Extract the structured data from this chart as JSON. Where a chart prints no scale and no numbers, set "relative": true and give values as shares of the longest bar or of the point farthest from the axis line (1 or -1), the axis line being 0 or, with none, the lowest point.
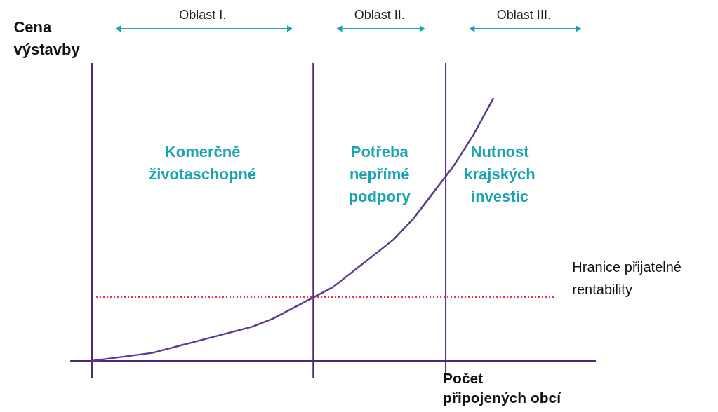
{
  "chart_data": {
    "type": "line",
    "relative": true,
    "xlabel": "Počet\npřipojených obcí",
    "ylabel": "Cena\nvýstavby",
    "categories": [
      null,
      null,
      null,
      null,
      null,
      null,
      null,
      null,
      null,
      null,
      null,
      null,
      null,
      null,
      null,
      null,
      null,
      null,
      null,
      null,
      null
    ],
    "series": [
      {
        "color": "#5e3a8e",
        "values": [
          0,
          0.01,
          0.02,
          0.03,
          0.05,
          0.07,
          0.09,
          0.11,
          0.13,
          0.16,
          0.2,
          0.24,
          0.28,
          0.34,
          0.4,
          0.46,
          0.54,
          0.64,
          0.74,
          0.86,
          1
        ]
      }
    ],
    "marker": "none",
    "line_style": "solid",
    "ref_lines": [
      {
        "axis": "y",
        "value": 0.243,
        "label": "Hranice přijatelné\nrentability",
        "color": "#e8334a",
        "line_style": "dotted"
      }
    ],
    "annotations": [
      "Oblast I.",
      "Oblast II.",
      "Oblast III.",
      "Komerčně\nživotaschopné",
      "Potřeba\nnepřímé\npodpory",
      "Nutnost\nkrajských\ninvestic"
    ]
  }
}
